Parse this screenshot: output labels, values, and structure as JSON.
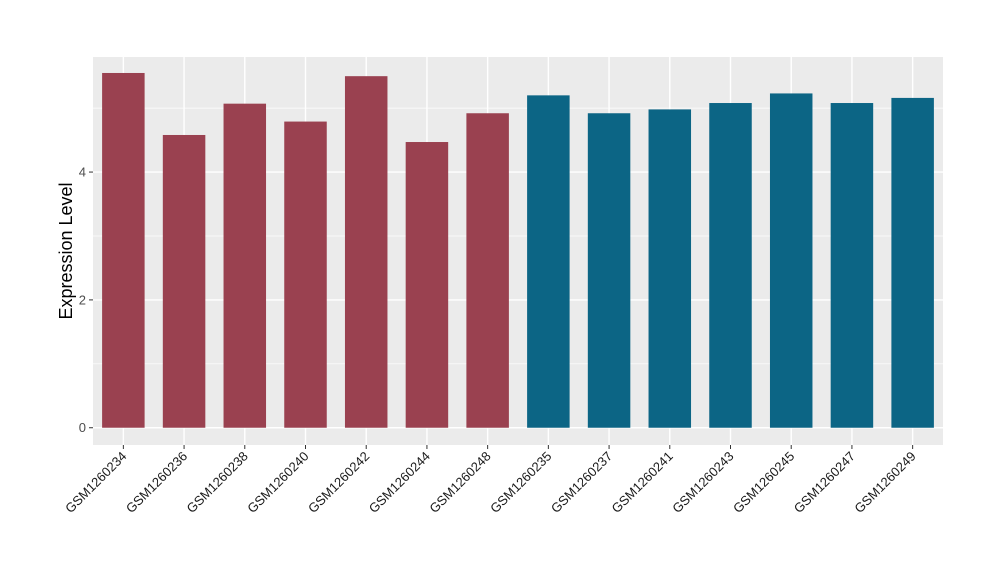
{
  "chart_data": {
    "type": "bar",
    "title": "",
    "xlabel": "",
    "ylabel": "Expression Level",
    "ylim": [
      -0.27,
      5.8
    ],
    "yticks": [
      0,
      2,
      4
    ],
    "grid": true,
    "legend": "none",
    "categories": [
      "GSM1260234",
      "GSM1260236",
      "GSM1260238",
      "GSM1260240",
      "GSM1260242",
      "GSM1260244",
      "GSM1260248",
      "GSM1260235",
      "GSM1260237",
      "GSM1260241",
      "GSM1260243",
      "GSM1260245",
      "GSM1260247",
      "GSM1260249"
    ],
    "values": [
      5.55,
      4.58,
      5.07,
      4.79,
      5.5,
      4.47,
      4.92,
      5.2,
      4.92,
      4.98,
      5.08,
      5.23,
      5.08,
      5.16
    ],
    "bar_colors": [
      "#9A4150",
      "#9A4150",
      "#9A4150",
      "#9A4150",
      "#9A4150",
      "#9A4150",
      "#9A4150",
      "#0C6585",
      "#0C6585",
      "#0C6585",
      "#0C6585",
      "#0C6585",
      "#0C6585",
      "#0C6585"
    ],
    "panel_background": "#EBEBEB",
    "grid_color": "#FFFFFF"
  }
}
